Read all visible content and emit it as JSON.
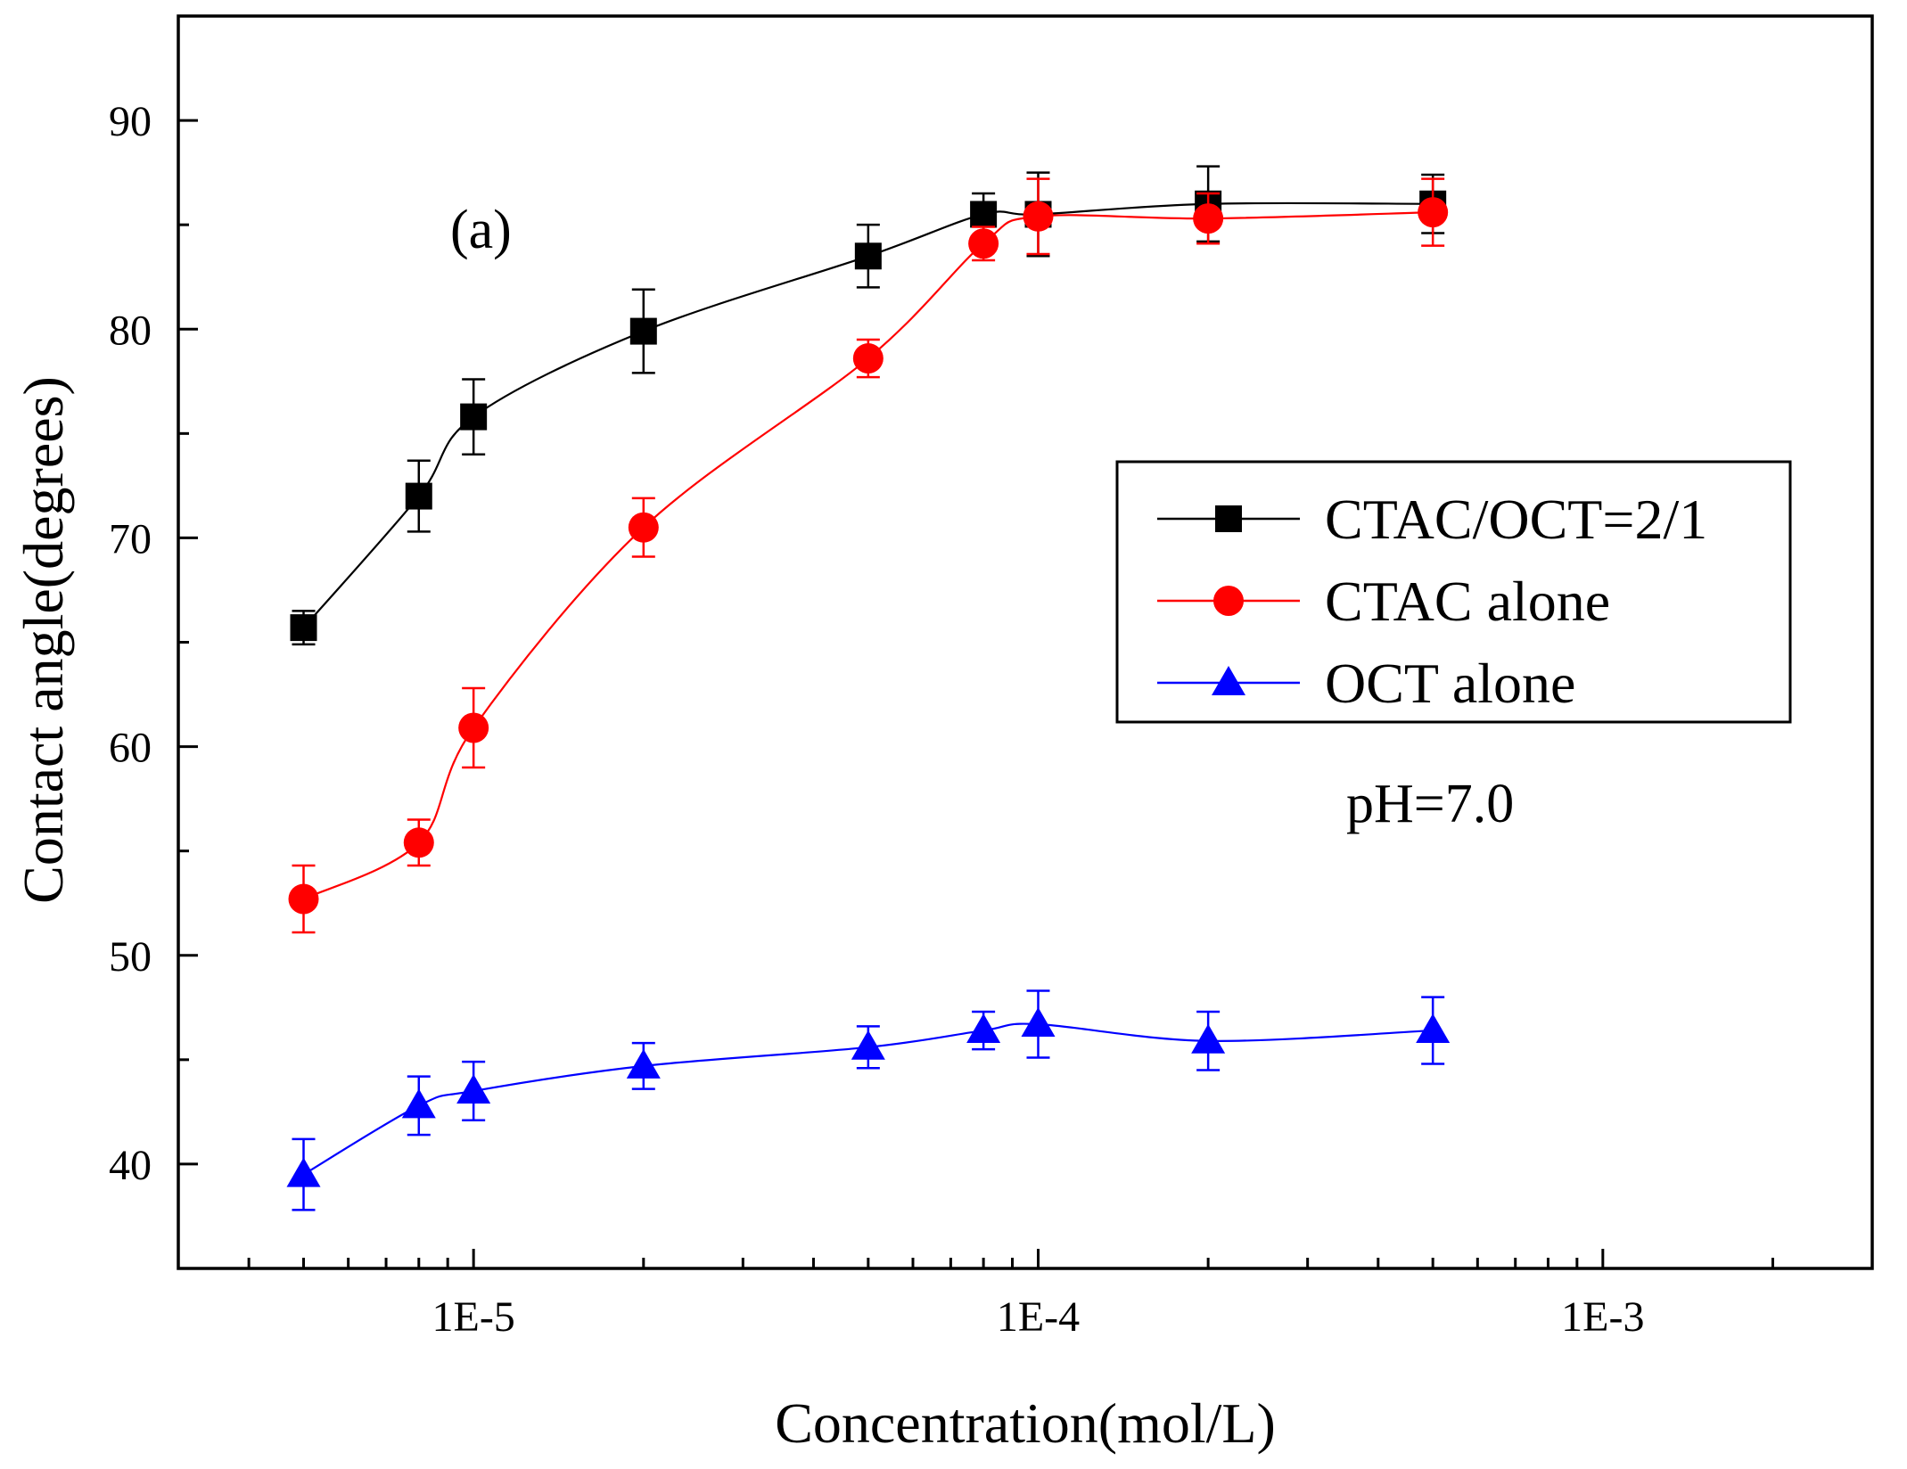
{
  "chart_data": {
    "type": "line",
    "xlabel": "Concentration(mol/L)",
    "ylabel": "Contact angle(degrees)",
    "x_scale": "log",
    "xlim": [
      3e-06,
      0.003
    ],
    "ylim": [
      35,
      95
    ],
    "x_major_ticks": [
      {
        "value": 1e-05,
        "label": "1E-5"
      },
      {
        "value": 0.0001,
        "label": "1E-4"
      },
      {
        "value": 0.001,
        "label": "1E-3"
      }
    ],
    "y_ticks": [
      40,
      50,
      60,
      70,
      80,
      90
    ],
    "y_tick_labels": [
      "40",
      "50",
      "60",
      "70",
      "80",
      "90"
    ],
    "grid": false,
    "legend_position": "right-middle",
    "annotations": {
      "panel": "(a)",
      "condition": "pH=7.0"
    },
    "x": [
      5e-06,
      8e-06,
      1e-05,
      2e-05,
      5e-05,
      8e-05,
      0.0001,
      0.0002,
      0.0005
    ],
    "series": [
      {
        "name": "CTAC/OCT=2/1",
        "color": "#000000",
        "marker": "square",
        "values": [
          65.7,
          72.0,
          75.8,
          79.9,
          83.5,
          85.5,
          85.5,
          86.0,
          86.0
        ],
        "errors": [
          0.8,
          1.7,
          1.8,
          2.0,
          1.5,
          1.0,
          2.0,
          1.8,
          1.4
        ]
      },
      {
        "name": "CTAC alone",
        "color": "#ff0000",
        "marker": "circle",
        "values": [
          52.7,
          55.4,
          60.9,
          70.5,
          78.6,
          84.1,
          85.4,
          85.3,
          85.6
        ],
        "errors": [
          1.6,
          1.1,
          1.9,
          1.4,
          0.9,
          0.8,
          1.8,
          1.2,
          1.6
        ]
      },
      {
        "name": "OCT alone",
        "color": "#0000ff",
        "marker": "triangle",
        "values": [
          39.5,
          42.8,
          43.5,
          44.7,
          45.6,
          46.4,
          46.7,
          45.9,
          46.4
        ],
        "errors": [
          1.7,
          1.4,
          1.4,
          1.1,
          1.0,
          0.9,
          1.6,
          1.4,
          1.6
        ]
      }
    ]
  }
}
